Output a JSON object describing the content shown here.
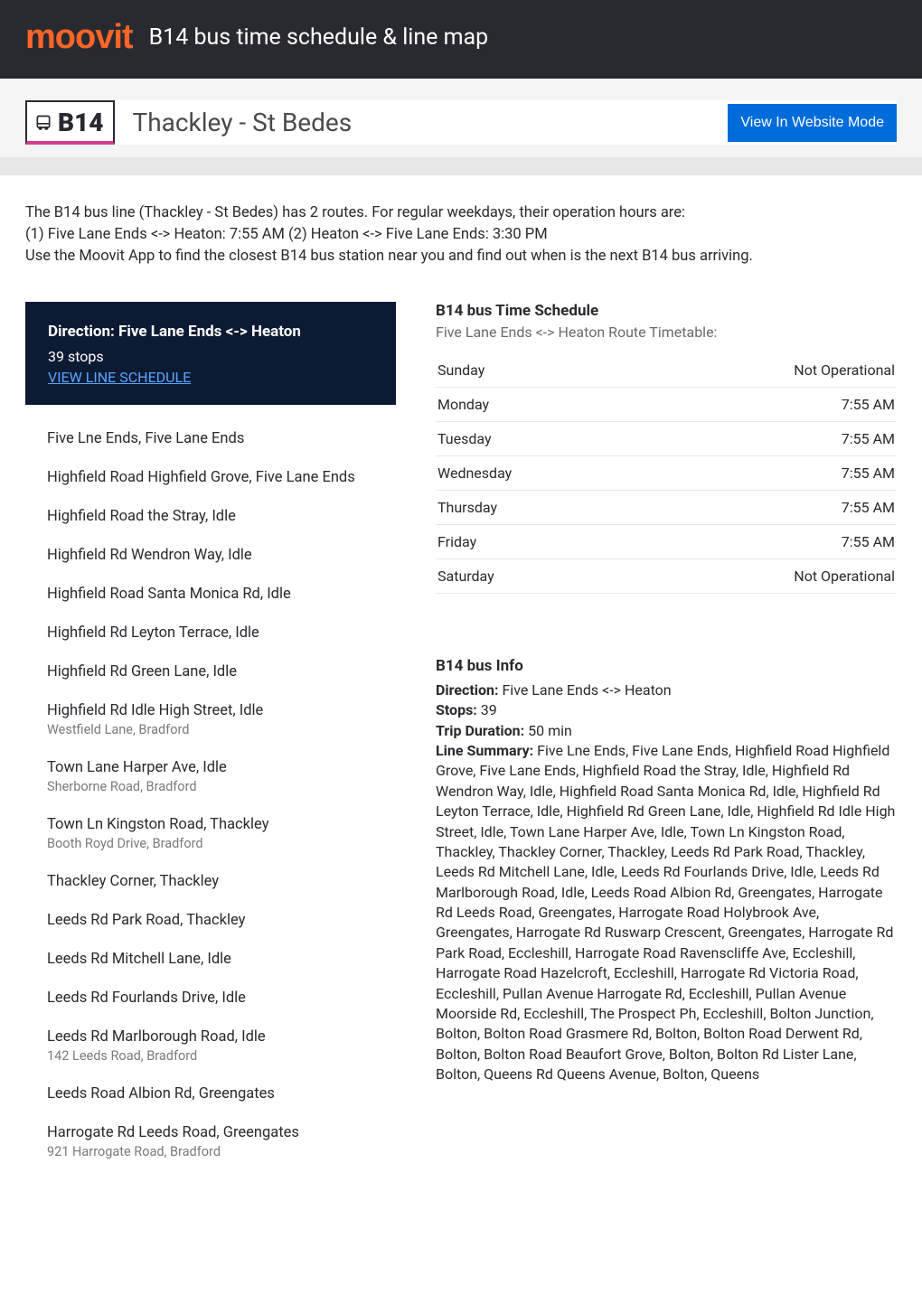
{
  "header": {
    "logo_text": "moovit",
    "logo_color": "#ff6528",
    "title": "B14 bus time schedule & line map",
    "bg_color": "#292a30"
  },
  "line_header": {
    "line_code": "B14",
    "route_name": "Thackley - St Bedes",
    "view_website_label": "View In Website Mode",
    "btn_bg": "#006cd9"
  },
  "intro": {
    "text": "The B14 bus line (Thackley - St Bedes) has 2 routes. For regular weekdays, their operation hours are:\n(1) Five Lane Ends <-> Heaton: 7:55 AM (2) Heaton <-> Five Lane Ends: 3:30 PM\nUse the Moovit App to find the closest B14 bus station near you and find out when is the next B14 bus arriving."
  },
  "direction_box": {
    "bg_color": "#0c1b33",
    "title": "Direction: Five Lane Ends <-> Heaton",
    "stops_count": "39 stops",
    "view_line_label": "VIEW LINE SCHEDULE",
    "link_color": "#5aa4ff"
  },
  "stops": [
    {
      "name": "Five Lne Ends, Five Lane Ends",
      "addr": ""
    },
    {
      "name": "Highfield Road Highfield Grove, Five Lane Ends",
      "addr": ""
    },
    {
      "name": "Highfield Road the Stray, Idle",
      "addr": ""
    },
    {
      "name": "Highfield Rd Wendron Way, Idle",
      "addr": ""
    },
    {
      "name": "Highfield Road Santa Monica Rd, Idle",
      "addr": ""
    },
    {
      "name": "Highfield Rd Leyton Terrace, Idle",
      "addr": ""
    },
    {
      "name": "Highfield Rd Green Lane, Idle",
      "addr": ""
    },
    {
      "name": "Highfield Rd Idle High Street, Idle",
      "addr": "Westfield Lane, Bradford"
    },
    {
      "name": "Town Lane Harper Ave, Idle",
      "addr": "Sherborne Road, Bradford"
    },
    {
      "name": "Town Ln Kingston Road, Thackley",
      "addr": "Booth Royd Drive, Bradford"
    },
    {
      "name": "Thackley Corner, Thackley",
      "addr": ""
    },
    {
      "name": "Leeds Rd Park Road, Thackley",
      "addr": ""
    },
    {
      "name": "Leeds Rd Mitchell Lane, Idle",
      "addr": ""
    },
    {
      "name": "Leeds Rd Fourlands Drive, Idle",
      "addr": ""
    },
    {
      "name": "Leeds Rd Marlborough Road, Idle",
      "addr": "142 Leeds Road, Bradford"
    },
    {
      "name": "Leeds Road Albion Rd, Greengates",
      "addr": ""
    },
    {
      "name": "Harrogate Rd Leeds Road, Greengates",
      "addr": "921 Harrogate Road, Bradford"
    }
  ],
  "schedule": {
    "title": "B14 bus Time Schedule",
    "subtitle": "Five Lane Ends <-> Heaton Route Timetable:",
    "rows": [
      {
        "day": "Sunday",
        "time": "Not Operational"
      },
      {
        "day": "Monday",
        "time": "7:55 AM"
      },
      {
        "day": "Tuesday",
        "time": "7:55 AM"
      },
      {
        "day": "Wednesday",
        "time": "7:55 AM"
      },
      {
        "day": "Thursday",
        "time": "7:55 AM"
      },
      {
        "day": "Friday",
        "time": "7:55 AM"
      },
      {
        "day": "Saturday",
        "time": "Not Operational"
      }
    ],
    "border_color": "#e8e8e8"
  },
  "info": {
    "title": "B14 bus Info",
    "direction_label": "Direction:",
    "direction_value": " Five Lane Ends <-> Heaton",
    "stops_label": "Stops:",
    "stops_value": " 39",
    "duration_label": "Trip Duration:",
    "duration_value": " 50 min",
    "summary_label": "Line Summary:",
    "summary_value": " Five Lne Ends, Five Lane Ends, Highfield Road Highfield Grove, Five Lane Ends, Highfield Road the Stray, Idle, Highfield Rd Wendron Way, Idle, Highfield Road Santa Monica Rd, Idle, Highfield Rd Leyton Terrace, Idle, Highfield Rd Green Lane, Idle, Highfield Rd Idle High Street, Idle, Town Lane Harper Ave, Idle, Town Ln Kingston Road, Thackley, Thackley Corner, Thackley, Leeds Rd Park Road, Thackley, Leeds Rd Mitchell Lane, Idle, Leeds Rd Fourlands Drive, Idle, Leeds Rd Marlborough Road, Idle, Leeds Road Albion Rd, Greengates, Harrogate Rd Leeds Road, Greengates, Harrogate Road Holybrook Ave, Greengates, Harrogate Rd Ruswarp Crescent, Greengates, Harrogate Rd Park Road, Eccleshill, Harrogate Road Ravenscliffe Ave, Eccleshill, Harrogate Road Hazelcroft, Eccleshill, Harrogate Rd Victoria Road, Eccleshill, Pullan Avenue Harrogate Rd, Eccleshill, Pullan Avenue Moorside Rd, Eccleshill, The Prospect Ph, Eccleshill, Bolton Junction, Bolton, Bolton Road Grasmere Rd, Bolton, Bolton Road Derwent Rd, Bolton, Bolton Road Beaufort Grove, Bolton, Bolton Rd Lister Lane, Bolton, Queens Rd Queens Avenue, Bolton, Queens"
  }
}
